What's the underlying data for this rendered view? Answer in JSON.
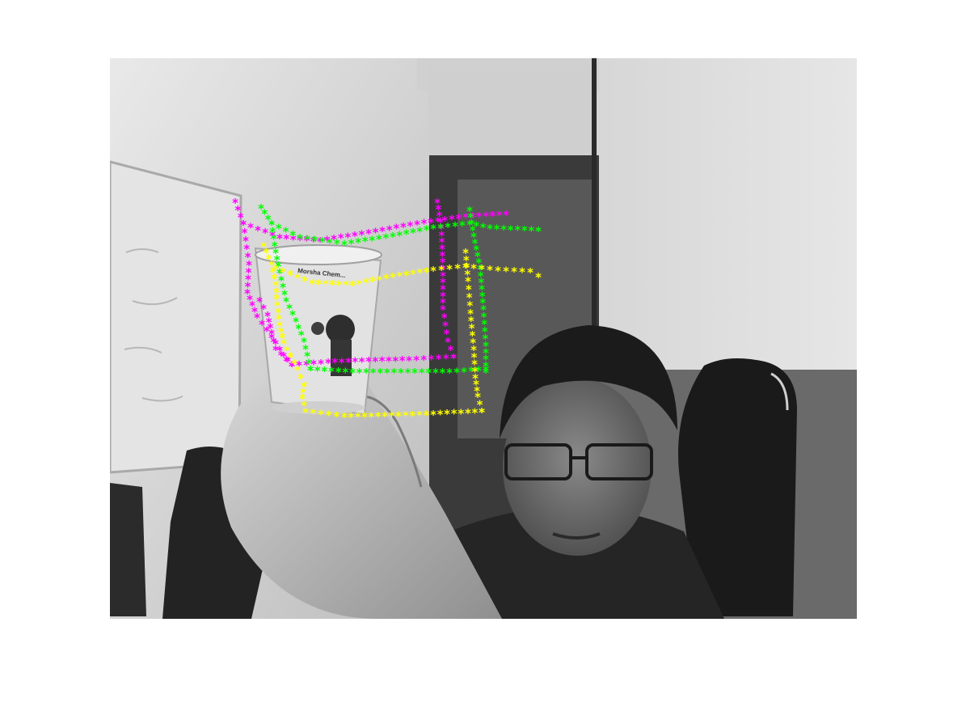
{
  "figure": {
    "background": "#ffffff",
    "image": {
      "description_tag": "grayscale-photo",
      "tone": "grayscale"
    },
    "cup_label_text": "Morsha Chem..."
  },
  "tracks": {
    "marker_glyph": "*",
    "series": [
      {
        "id": "magenta",
        "color": "#ff00ff"
      },
      {
        "id": "green",
        "color": "#00ff00"
      },
      {
        "id": "yellow",
        "color": "#ffff00"
      }
    ]
  }
}
